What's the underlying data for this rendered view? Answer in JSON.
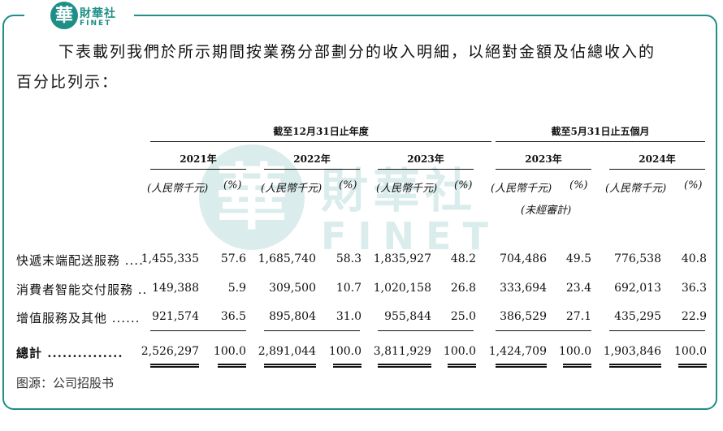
{
  "logo": {
    "mark": "華",
    "name_cn": "財華社",
    "name_en": "FINET"
  },
  "watermark": {
    "mark": "華",
    "name_cn": "財華社",
    "name_en": "FINET"
  },
  "intro": {
    "line1": "下表載列我們於所示期間按業務分部劃分的收入明細，以絕對金額及佔總收入的",
    "line2": "百分比列示："
  },
  "table": {
    "group_full_year": "截至12月31日止年度",
    "group_five_months": "截至5月31日止五個月",
    "years": [
      "2021年",
      "2022年",
      "2023年",
      "2023年",
      "2024年"
    ],
    "unit_amount": "(人民幣千元)",
    "unit_pct": "(%)",
    "unaudited": "(未經審計)",
    "rows": [
      {
        "label": "快遞末端配送服務 ....",
        "values": [
          "1,455,335",
          "57.6",
          "1,685,740",
          "58.3",
          "1,835,927",
          "48.2",
          "704,486",
          "49.5",
          "776,538",
          "40.8"
        ]
      },
      {
        "label": "消費者智能交付服務 ..",
        "values": [
          "149,388",
          "5.9",
          "309,500",
          "10.7",
          "1,020,158",
          "26.8",
          "333,694",
          "23.4",
          "692,013",
          "36.3"
        ]
      },
      {
        "label": "增值服務及其他 ......",
        "values": [
          "921,574",
          "36.5",
          "895,804",
          "31.0",
          "955,844",
          "25.0",
          "386,529",
          "27.1",
          "435,295",
          "22.9"
        ]
      }
    ],
    "total": {
      "label": "總計 ...............",
      "values": [
        "2,526,297",
        "100.0",
        "2,891,044",
        "100.0",
        "3,811,929",
        "100.0",
        "1,424,709",
        "100.0",
        "1,903,846",
        "100.0"
      ]
    }
  },
  "source": "图源：公司招股书",
  "colors": {
    "brand": "#1e8e86"
  }
}
